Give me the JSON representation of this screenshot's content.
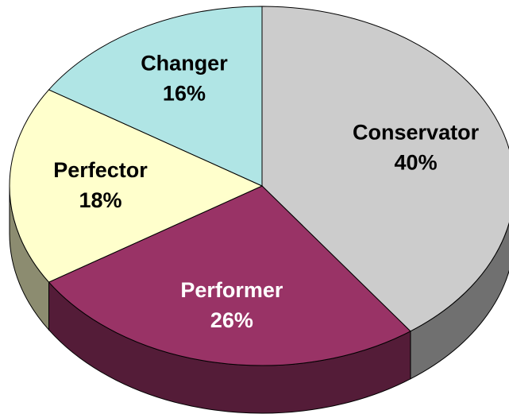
{
  "chart_data": {
    "type": "pie3d",
    "categories": [
      "Conservator",
      "Performer",
      "Perfector",
      "Changer"
    ],
    "values": [
      40,
      26,
      18,
      16
    ],
    "value_labels": [
      "40%",
      "26%",
      "18%",
      "16%"
    ],
    "colors": [
      "#cccccc",
      "#993366",
      "#ffffcc",
      "#b0e5e5"
    ]
  }
}
